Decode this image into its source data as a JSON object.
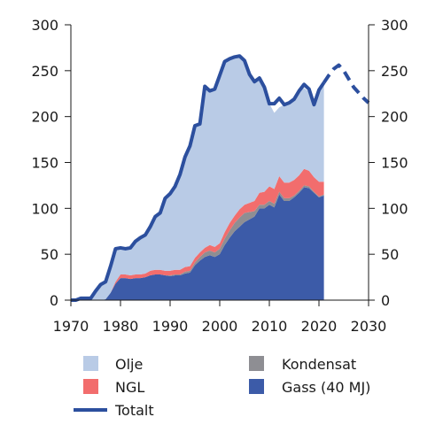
{
  "chart_data": {
    "type": "area",
    "x_ticks": [
      1970,
      1980,
      1990,
      2000,
      2010,
      2020,
      2030
    ],
    "y_ticks": [
      0,
      50,
      100,
      150,
      200,
      250,
      300
    ],
    "xlim": [
      1970,
      2030
    ],
    "ylim": [
      0,
      300
    ],
    "grid": false,
    "legend_position": "bottom",
    "stacked_series": [
      {
        "name": "Gass (40 MJ)",
        "color": "#3c5ba8",
        "x": [
          1970,
          1976,
          1977,
          1978,
          1979,
          1980,
          1981,
          1982,
          1983,
          1984,
          1985,
          1986,
          1987,
          1988,
          1989,
          1990,
          1991,
          1992,
          1993,
          1994,
          1995,
          1996,
          1997,
          1998,
          1999,
          2000,
          2001,
          2002,
          2003,
          2004,
          2005,
          2006,
          2007,
          2008,
          2009,
          2010,
          2011,
          2012,
          2013,
          2014,
          2015,
          2016,
          2017,
          2018,
          2019,
          2020,
          2021
        ],
        "values": [
          0,
          0,
          1,
          8,
          18,
          24,
          24,
          23,
          24,
          24,
          25,
          27,
          28,
          28,
          27,
          26,
          27,
          27,
          29,
          30,
          38,
          43,
          47,
          49,
          47,
          50,
          60,
          68,
          75,
          80,
          85,
          88,
          91,
          100,
          100,
          104,
          101,
          115,
          108,
          108,
          112,
          117,
          123,
          122,
          117,
          112,
          114
        ]
      },
      {
        "name": "Kondensat",
        "color": "#8e8e93",
        "x": [
          1970,
          1976,
          1977,
          1978,
          1979,
          1980,
          1981,
          1982,
          1983,
          1984,
          1985,
          1986,
          1987,
          1988,
          1989,
          1990,
          1991,
          1992,
          1993,
          1994,
          1995,
          1996,
          1997,
          1998,
          1999,
          2000,
          2001,
          2002,
          2003,
          2004,
          2005,
          2006,
          2007,
          2008,
          2009,
          2010,
          2011,
          2012,
          2013,
          2014,
          2015,
          2016,
          2017,
          2018,
          2019,
          2020,
          2021
        ],
        "values": [
          0,
          0,
          0,
          0,
          0,
          0,
          0,
          0,
          0,
          0,
          0,
          0,
          0,
          0,
          0,
          1,
          1,
          1,
          2,
          2,
          3,
          4,
          5,
          5,
          5,
          6,
          7,
          8,
          9,
          10,
          10,
          8,
          6,
          4,
          4,
          4,
          4,
          3,
          3,
          3,
          2,
          2,
          2,
          2,
          1,
          1,
          1
        ]
      },
      {
        "name": "NGL",
        "color": "#f26d6d",
        "x": [
          1970,
          1976,
          1977,
          1978,
          1979,
          1980,
          1981,
          1982,
          1983,
          1984,
          1985,
          1986,
          1987,
          1988,
          1989,
          1990,
          1991,
          1992,
          1993,
          1994,
          1995,
          1996,
          1997,
          1998,
          1999,
          2000,
          2001,
          2002,
          2003,
          2004,
          2005,
          2006,
          2007,
          2008,
          2009,
          2010,
          2011,
          2012,
          2013,
          2014,
          2015,
          2016,
          2017,
          2018,
          2019,
          2020,
          2021
        ],
        "values": [
          0,
          0,
          0,
          0,
          2,
          4,
          4,
          4,
          4,
          4,
          4,
          5,
          5,
          5,
          5,
          5,
          5,
          5,
          5,
          5,
          5,
          5,
          5,
          6,
          6,
          6,
          7,
          8,
          8,
          9,
          9,
          10,
          11,
          13,
          14,
          16,
          16,
          17,
          17,
          17,
          17,
          17,
          18,
          17,
          16,
          16,
          14
        ]
      },
      {
        "name": "Olje",
        "color": "#b9cbe6",
        "x": [
          1970,
          1971,
          1972,
          1973,
          1974,
          1975,
          1976,
          1977,
          1978,
          1979,
          1980,
          1981,
          1982,
          1983,
          1984,
          1985,
          1986,
          1987,
          1988,
          1989,
          1990,
          1991,
          1992,
          1993,
          1994,
          1995,
          1996,
          1997,
          1998,
          1999,
          2000,
          2001,
          2002,
          2003,
          2004,
          2005,
          2006,
          2007,
          2008,
          2009,
          2010,
          2011,
          2012,
          2013,
          2014,
          2015,
          2016,
          2017,
          2018,
          2019,
          2020,
          2021
        ],
        "values": [
          0,
          0,
          2,
          2,
          2,
          10,
          17,
          20,
          29,
          36,
          29,
          28,
          30,
          36,
          40,
          42,
          48,
          58,
          62,
          79,
          84,
          91,
          104,
          120,
          131,
          144,
          140,
          176,
          168,
          170,
          183,
          186,
          179,
          172,
          167,
          156,
          140,
          130,
          122,
          110,
          90,
          83,
          75,
          85,
          86,
          90,
          92,
          88,
          86,
          79,
          103,
          108
        ]
      }
    ],
    "line_series": [
      {
        "name": "Totalt",
        "color": "#2c4f9e",
        "style": "solid",
        "x": [
          1970,
          1971,
          1972,
          1973,
          1974,
          1975,
          1976,
          1977,
          1978,
          1979,
          1980,
          1981,
          1982,
          1983,
          1984,
          1985,
          1986,
          1987,
          1988,
          1989,
          1990,
          1991,
          1992,
          1993,
          1994,
          1995,
          1996,
          1997,
          1998,
          1999,
          2000,
          2001,
          2002,
          2003,
          2004,
          2005,
          2006,
          2007,
          2008,
          2009,
          2010,
          2011,
          2012,
          2013,
          2014,
          2015,
          2016,
          2017,
          2018,
          2019,
          2020,
          2021
        ],
        "values": [
          0,
          0,
          2,
          2,
          2,
          10,
          17,
          20,
          37,
          56,
          57,
          56,
          57,
          64,
          68,
          71,
          80,
          91,
          95,
          111,
          116,
          124,
          137,
          156,
          168,
          190,
          192,
          233,
          228,
          230,
          245,
          260,
          263,
          265,
          266,
          261,
          246,
          238,
          242,
          232,
          214,
          214,
          220,
          213,
          215,
          219,
          228,
          235,
          230,
          213,
          229,
          237
        ]
      },
      {
        "name": "Totalt",
        "color": "#2c4f9e",
        "style": "dashed",
        "x": [
          2021,
          2022,
          2023,
          2024,
          2025,
          2026,
          2027,
          2028,
          2029,
          2030
        ],
        "values": [
          237,
          245,
          252,
          256,
          250,
          241,
          232,
          226,
          220,
          215
        ]
      }
    ],
    "legend": [
      {
        "label": "Olje",
        "kind": "swatch",
        "color": "#b9cbe6"
      },
      {
        "label": "Kondensat",
        "kind": "swatch",
        "color": "#8e8e93"
      },
      {
        "label": "NGL",
        "kind": "swatch",
        "color": "#f26d6d"
      },
      {
        "label": "Gass (40 MJ)",
        "kind": "swatch",
        "color": "#3c5ba8"
      },
      {
        "label": "Totalt",
        "kind": "line",
        "color": "#2c4f9e"
      }
    ]
  }
}
